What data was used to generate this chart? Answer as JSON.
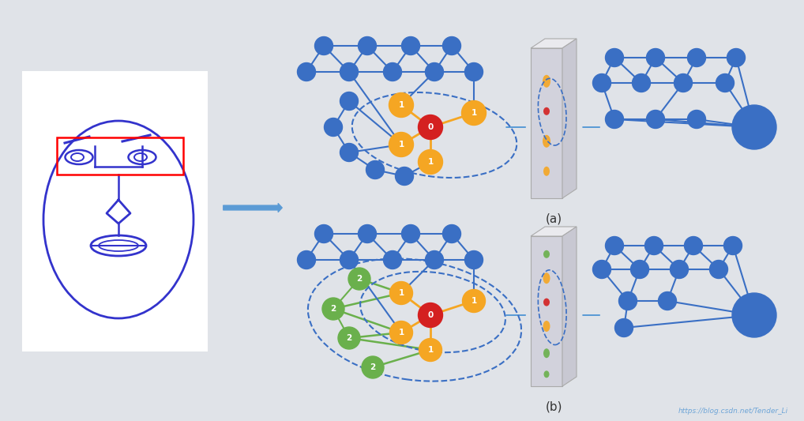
{
  "bg_color": "#e0e3e8",
  "face_bg": "#f5f5f5",
  "blue_node": "#3a6fc4",
  "orange_node": "#f5a623",
  "red_node": "#d42020",
  "green_node": "#6ab04c",
  "arrow_color": "#5b9bd5",
  "label_a": "(a)",
  "label_b": "(b)",
  "watermark": "https://blog.csdn.net/Tender_Li"
}
